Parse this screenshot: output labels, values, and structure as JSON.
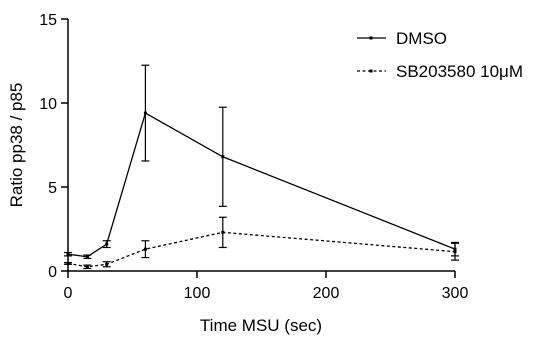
{
  "chart_data": {
    "type": "line",
    "title": "",
    "xlabel": "Time MSU (sec)",
    "ylabel": "Ratio pp38 / p85",
    "xlim": [
      0,
      300
    ],
    "ylim": [
      0,
      15
    ],
    "xticks": [
      0,
      100,
      200,
      300
    ],
    "yticks": [
      0,
      5,
      10,
      15
    ],
    "grid": false,
    "legend_position": "top-right",
    "series": [
      {
        "name": "DMSO",
        "line_style": "solid",
        "color": "#000000",
        "x": [
          0,
          15,
          30,
          60,
          120,
          300
        ],
        "y": [
          1.0,
          0.85,
          1.6,
          9.4,
          6.8,
          1.3
        ],
        "error": [
          0.1,
          0.1,
          0.2,
          2.85,
          2.95,
          0.4
        ]
      },
      {
        "name": "SB203580 10μM",
        "line_style": "dashed",
        "color": "#000000",
        "x": [
          0,
          15,
          30,
          60,
          120,
          300
        ],
        "y": [
          0.45,
          0.25,
          0.4,
          1.3,
          2.3,
          1.15
        ],
        "error": [
          0.05,
          0.1,
          0.15,
          0.5,
          0.9,
          0.5
        ]
      }
    ]
  }
}
